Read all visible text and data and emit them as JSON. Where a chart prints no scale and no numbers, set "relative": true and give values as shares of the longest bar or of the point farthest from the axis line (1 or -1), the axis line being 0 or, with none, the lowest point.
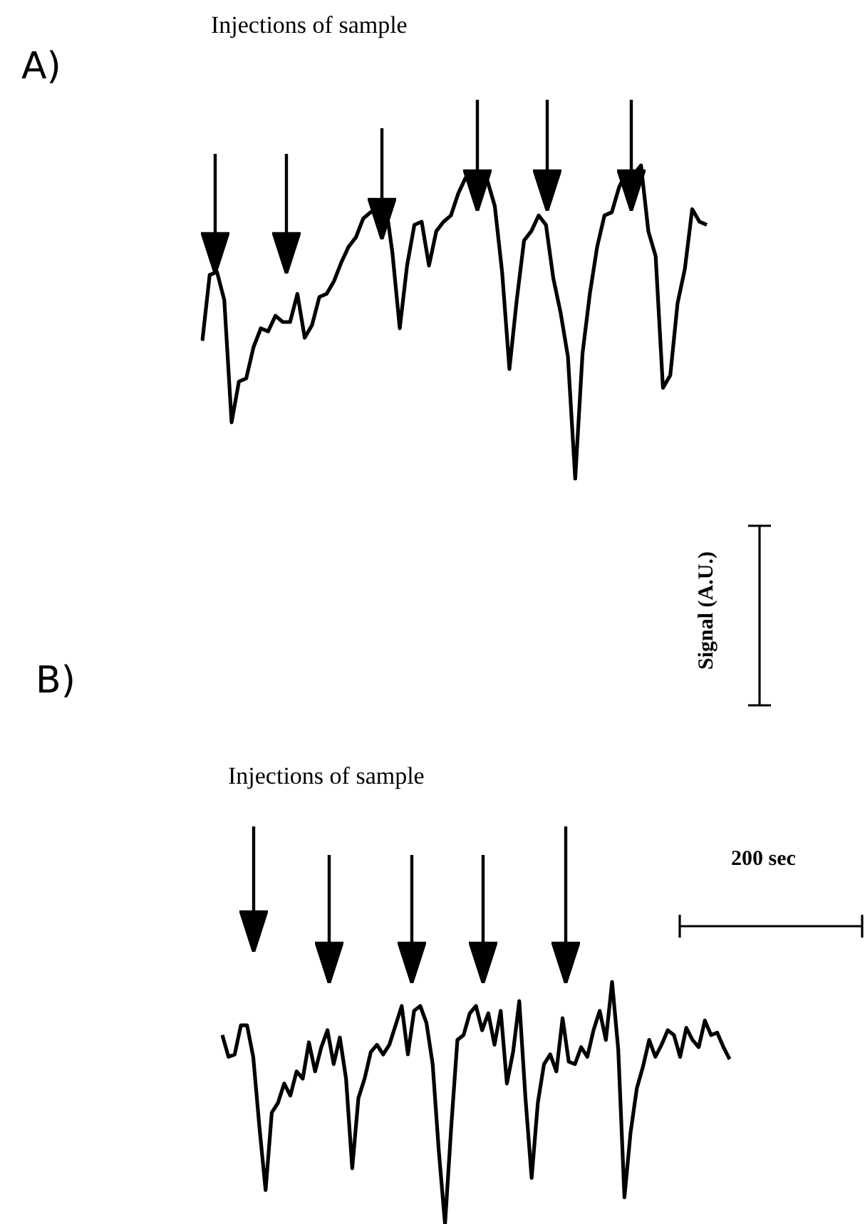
{
  "chart_data": [
    {
      "type": "line",
      "relative": true,
      "title": "Injections of sample",
      "annotations": [
        "A)",
        "Signal (A.U.)"
      ],
      "marker": "none",
      "legend": false,
      "categories": [
        null,
        null,
        null,
        null,
        null,
        null,
        null,
        null,
        null,
        null,
        null,
        null,
        null,
        null,
        null,
        null,
        null,
        null,
        null,
        null,
        null,
        null,
        null,
        null,
        null,
        null,
        null,
        null,
        null,
        null,
        null,
        null,
        null,
        null,
        null,
        null,
        null,
        null,
        null,
        null,
        null,
        null,
        null,
        null,
        null,
        null,
        null,
        null,
        null,
        null,
        null,
        null,
        null,
        null,
        null,
        null,
        null,
        null,
        null,
        null,
        null,
        null,
        null,
        null,
        null,
        null,
        null,
        null,
        null,
        null
      ],
      "series": [
        {
          "color": "#000000",
          "values": [
            0.44,
            0.65,
            0.66,
            0.57,
            0.18,
            0.31,
            0.32,
            0.42,
            0.48,
            0.47,
            0.52,
            0.5,
            0.5,
            0.59,
            0.45,
            0.49,
            0.58,
            0.59,
            0.63,
            0.69,
            0.74,
            0.77,
            0.83,
            0.85,
            0.86,
            0.89,
            0.72,
            0.48,
            0.68,
            0.81,
            0.82,
            0.68,
            0.79,
            0.82,
            0.84,
            0.91,
            0.96,
            0.95,
            0.92,
            0.95,
            0.87,
            0.66,
            0.35,
            0.57,
            0.76,
            0.79,
            0.84,
            0.81,
            0.64,
            0.53,
            0.39,
            0,
            0.4,
            0.59,
            0.74,
            0.84,
            0.85,
            0.93,
            0.98,
            0.97,
            1,
            0.79,
            0.71,
            0.29,
            0.33,
            0.56,
            0.67,
            0.86,
            0.82,
            0.81
          ]
        }
      ]
    },
    {
      "type": "line",
      "relative": true,
      "title": "Injections of sample",
      "annotations": [
        "B)",
        "200 sec"
      ],
      "marker": "none",
      "legend": false,
      "categories": [
        null,
        null,
        null,
        null,
        null,
        null,
        null,
        null,
        null,
        null,
        null,
        null,
        null,
        null,
        null,
        null,
        null,
        null,
        null,
        null,
        null,
        null,
        null,
        null,
        null,
        null,
        null,
        null,
        null,
        null,
        null,
        null,
        null,
        null,
        null,
        null,
        null,
        null,
        null,
        null,
        null,
        null,
        null,
        null,
        null,
        null,
        null,
        null,
        null,
        null,
        null,
        null,
        null,
        null,
        null,
        null,
        null,
        null,
        null,
        null,
        null,
        null,
        null,
        null,
        null,
        null,
        null,
        null,
        null,
        null,
        null,
        null,
        null,
        null,
        null,
        null,
        null,
        null,
        null,
        null,
        null,
        null,
        null
      ],
      "series": [
        {
          "color": "#000000",
          "values": [
            0.78,
            0.69,
            0.7,
            0.82,
            0.82,
            0.69,
            0.4,
            0.14,
            0.46,
            0.5,
            0.58,
            0.53,
            0.63,
            0.6,
            0.75,
            0.63,
            0.73,
            0.8,
            0.66,
            0.77,
            0.6,
            0.23,
            0.52,
            0.6,
            0.71,
            0.74,
            0.7,
            0.74,
            0.82,
            0.9,
            0.7,
            0.88,
            0.9,
            0.83,
            0.66,
            0.3,
            0,
            0.4,
            0.76,
            0.78,
            0.87,
            0.9,
            0.8,
            0.87,
            0.74,
            0.88,
            0.58,
            0.71,
            0.92,
            0.52,
            0.19,
            0.5,
            0.66,
            0.7,
            0.63,
            0.85,
            0.67,
            0.66,
            0.73,
            0.69,
            0.8,
            0.88,
            0.76,
            1,
            0.72,
            0.11,
            0.38,
            0.56,
            0.65,
            0.76,
            0.69,
            0.74,
            0.8,
            0.78,
            0.69,
            0.81,
            0.76,
            0.73,
            0.84,
            0.78,
            0.79,
            0.73,
            0.68
          ]
        }
      ]
    }
  ]
}
